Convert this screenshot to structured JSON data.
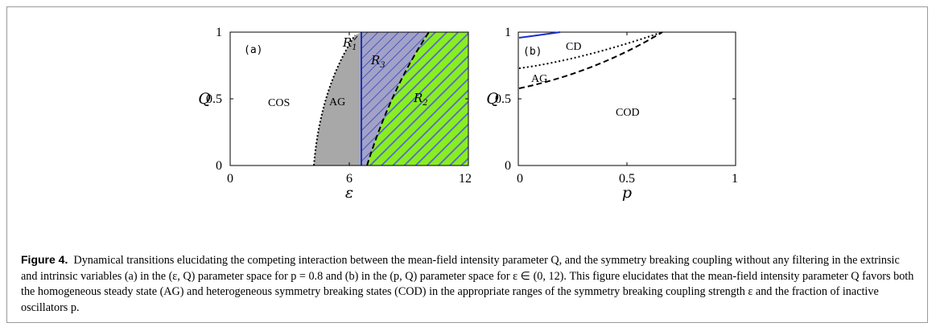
{
  "panel_a": {
    "label": "(a)",
    "xlabel": "ε",
    "ylabel": "Q",
    "xticks": [
      "0",
      "6",
      "12"
    ],
    "yticks": [
      "0",
      "0.5",
      "1"
    ],
    "regions": {
      "cos": "COS",
      "ag": "AG",
      "r1": "R",
      "r1_sub": "1",
      "r2": "R",
      "r2_sub": "2",
      "r3": "R",
      "r3_sub": "3"
    }
  },
  "panel_b": {
    "label": "(b)",
    "xlabel": "p",
    "ylabel": "Q",
    "xticks": [
      "0",
      "0.5",
      "1"
    ],
    "yticks": [
      "0",
      "0.5",
      "1"
    ],
    "regions": {
      "cd": "CD",
      "ag": "AG",
      "cod": "COD"
    }
  },
  "caption": {
    "label": "Figure 4.",
    "text": "Dynamical transitions elucidating the competing interaction between the mean-field intensity parameter Q, and the symmetry breaking coupling without any filtering in the extrinsic and intrinsic variables (a) in the (ε, Q) parameter space for p = 0.8 and (b) in the (p, Q) parameter space for ε ∈ (0, 12). This figure elucidates that the mean-field intensity parameter Q favors both the homogeneous steady state (AG) and heterogeneous symmetry breaking states (COD) in the appropriate ranges of the symmetry breaking coupling strength ε and the fraction of inactive oscillators p."
  },
  "chart_data": [
    {
      "type": "area",
      "xlim": [
        0,
        12
      ],
      "ylim": [
        0,
        1
      ],
      "xlabel": "ε",
      "ylabel": "Q",
      "boundaries": [
        {
          "style": "dotted",
          "x": [
            4.2,
            4.4,
            4.8,
            5.2,
            5.6,
            6.0,
            6.4
          ],
          "y": [
            0.0,
            0.2,
            0.45,
            0.65,
            0.8,
            0.9,
            0.97
          ]
        },
        {
          "style": "solid-blue",
          "x": [
            6.5,
            6.5
          ],
          "y": [
            0.0,
            1.0
          ]
        },
        {
          "style": "dashed",
          "x": [
            6.9,
            7.2,
            7.7,
            8.2,
            8.8,
            9.4,
            10.0
          ],
          "y": [
            0.0,
            0.2,
            0.42,
            0.62,
            0.8,
            0.93,
            1.0
          ]
        }
      ],
      "regions": [
        "COS",
        "AG",
        "R1",
        "R2",
        "R3"
      ]
    },
    {
      "type": "line",
      "xlim": [
        0,
        1
      ],
      "ylim": [
        0,
        1
      ],
      "xlabel": "p",
      "ylabel": "Q",
      "series": [
        {
          "style": "solid-blue",
          "x": [
            0,
            0.1,
            0.19
          ],
          "y": [
            0.955,
            0.975,
            1.0
          ]
        },
        {
          "style": "dotted",
          "x": [
            0,
            0.15,
            0.3,
            0.45,
            0.55,
            0.66
          ],
          "y": [
            0.73,
            0.76,
            0.81,
            0.88,
            0.93,
            1.0
          ]
        },
        {
          "style": "dashed",
          "x": [
            0,
            0.15,
            0.3,
            0.45,
            0.55,
            0.66
          ],
          "y": [
            0.58,
            0.63,
            0.7,
            0.8,
            0.88,
            1.0
          ]
        }
      ],
      "regions": [
        "CD",
        "AG",
        "COD"
      ]
    }
  ]
}
